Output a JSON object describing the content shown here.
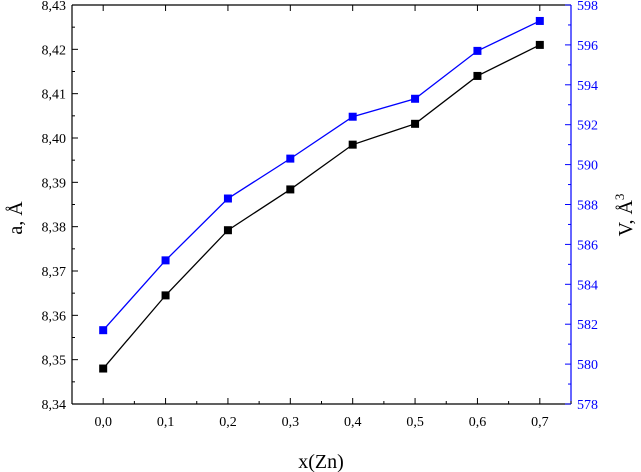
{
  "chart_data": {
    "type": "line",
    "xlabel": "x(Zn)",
    "ylabel_left": "a, Å",
    "ylabel_right": "V, Å",
    "ylabel_right_superscript": "3",
    "x": [
      0.0,
      0.1,
      0.2,
      0.3,
      0.4,
      0.5,
      0.6,
      0.7
    ],
    "xlim": [
      -0.05,
      0.75
    ],
    "ylim_left": [
      8.34,
      8.43
    ],
    "ylim_right": [
      578,
      598
    ],
    "x_ticks": [
      0.0,
      0.1,
      0.2,
      0.3,
      0.4,
      0.5,
      0.6,
      0.7
    ],
    "x_tick_labels": [
      "0,0",
      "0,1",
      "0,2",
      "0,3",
      "0,4",
      "0,5",
      "0,6",
      "0,7"
    ],
    "y_left_ticks": [
      8.34,
      8.35,
      8.36,
      8.37,
      8.38,
      8.39,
      8.4,
      8.41,
      8.42,
      8.43
    ],
    "y_left_tick_labels": [
      "8,34",
      "8,35",
      "8,36",
      "8,37",
      "8,38",
      "8,39",
      "8,40",
      "8,41",
      "8,42",
      "8,43"
    ],
    "y_right_ticks": [
      578,
      580,
      582,
      584,
      586,
      588,
      590,
      592,
      594,
      596,
      598
    ],
    "y_right_tick_labels": [
      "578",
      "580",
      "582",
      "584",
      "586",
      "588",
      "590",
      "592",
      "594",
      "596",
      "598"
    ],
    "series": [
      {
        "axis": "left",
        "color": "#000000",
        "marker": "square",
        "values": [
          8.348,
          8.3645,
          8.3792,
          8.3884,
          8.3985,
          8.4032,
          8.414,
          8.421
        ]
      },
      {
        "axis": "right",
        "color": "#0000ff",
        "marker": "square",
        "values": [
          581.7,
          585.2,
          588.3,
          590.3,
          592.4,
          593.3,
          595.7,
          597.2
        ]
      }
    ],
    "grid": false,
    "legend": "none"
  }
}
